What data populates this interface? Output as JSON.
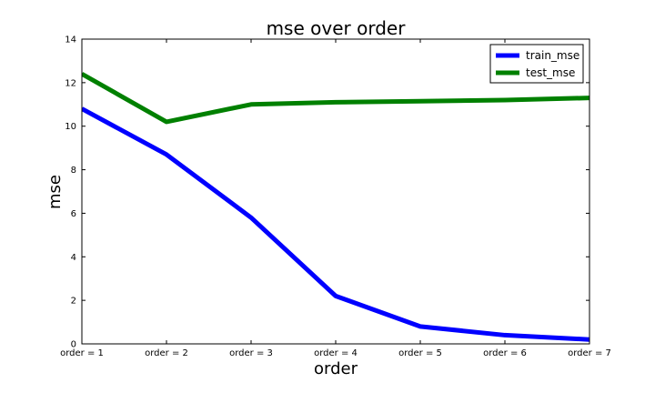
{
  "chart_data": {
    "type": "line",
    "title": "mse over order",
    "xlabel": "order",
    "ylabel": "mse",
    "categories": [
      "order = 1",
      "order = 2",
      "order = 3",
      "order = 4",
      "order = 5",
      "order = 6",
      "order = 7"
    ],
    "ylim": [
      0,
      14
    ],
    "yticks": [
      0,
      2,
      4,
      6,
      8,
      10,
      12,
      14
    ],
    "grid": false,
    "legend": "top-right",
    "series": [
      {
        "name": "train_mse",
        "color": "#0000ff",
        "values": [
          10.8,
          8.7,
          5.8,
          2.2,
          0.8,
          0.4,
          0.2
        ]
      },
      {
        "name": "test_mse",
        "color": "#008000",
        "values": [
          12.4,
          10.2,
          11.0,
          11.1,
          11.15,
          11.2,
          11.3
        ]
      }
    ]
  }
}
